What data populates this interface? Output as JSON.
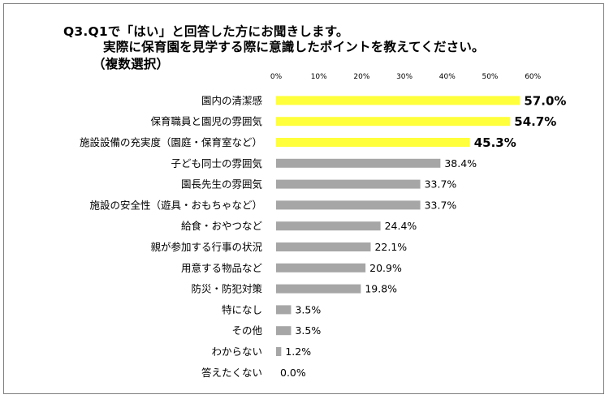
{
  "title": {
    "line1": "Q3.Q1で「はい」と回答した方にお聞きします。",
    "line2": "実際に保育園を見学する際に意識したポイントを教えてください。",
    "line3": "（複数選択）"
  },
  "colors": {
    "highlight": "#ffff3b",
    "normal": "#a6a6a6"
  },
  "chart_data": {
    "type": "bar",
    "orientation": "horizontal",
    "categories": [
      "園内の清潔感",
      "保育職員と園児の雰囲気",
      "施設設備の充実度（園庭・保育室など）",
      "子ども同士の雰囲気",
      "園長先生の雰囲気",
      "施設の安全性（遊具・おもちゃなど）",
      "給食・おやつなど",
      "親が参加する行事の状況",
      "用意する物品など",
      "防災・防犯対策",
      "特になし",
      "その他",
      "わからない",
      "答えたくない"
    ],
    "values": [
      57.0,
      54.7,
      45.3,
      38.4,
      33.7,
      33.7,
      24.4,
      22.1,
      20.9,
      19.8,
      3.5,
      3.5,
      1.2,
      0.0
    ],
    "data_labels": [
      "57.0%",
      "54.7%",
      "45.3%",
      "38.4%",
      "33.7%",
      "33.7%",
      "24.4%",
      "22.1%",
      "20.9%",
      "19.8%",
      "3.5%",
      "3.5%",
      "1.2%",
      "0.0%"
    ],
    "highlighted": [
      true,
      true,
      true,
      false,
      false,
      false,
      false,
      false,
      false,
      false,
      false,
      false,
      false,
      false
    ],
    "x_ticks": [
      "0%",
      "10%",
      "20%",
      "30%",
      "40%",
      "50%",
      "60%"
    ],
    "xlim": [
      0,
      60
    ],
    "grid": false,
    "legend": "none"
  }
}
